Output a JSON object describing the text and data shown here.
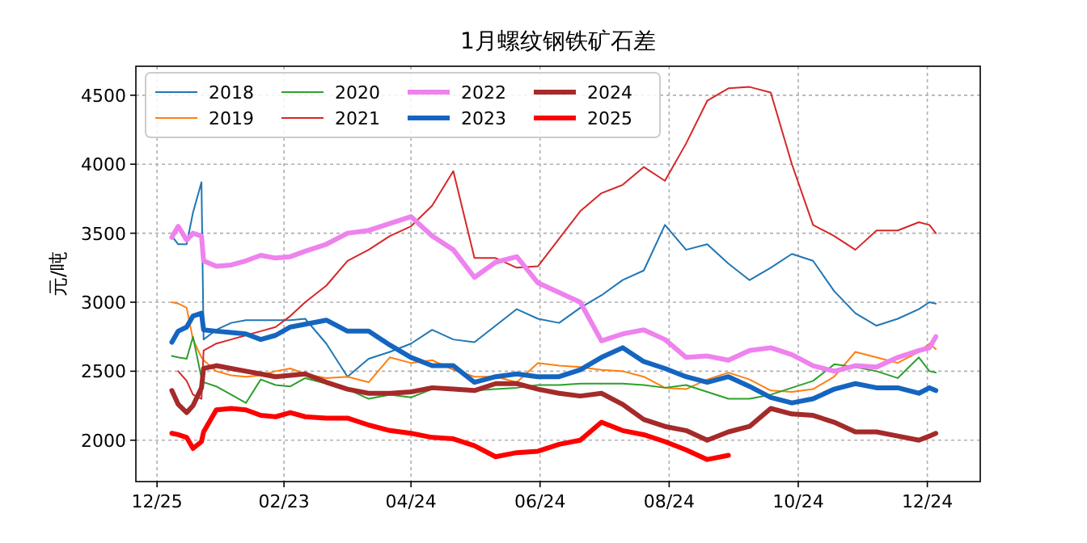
{
  "chart_data": {
    "type": "line",
    "title": "1月螺纹钢铁矿石差",
    "ylabel": "元/吨",
    "xlim": [
      "2000-12-15",
      "2002-01-18"
    ],
    "xticks": [
      {
        "value": "2000-12-25",
        "label": "12/25"
      },
      {
        "value": "2001-02-23",
        "label": "02/23"
      },
      {
        "value": "2001-04-24",
        "label": "04/24"
      },
      {
        "value": "2001-06-24",
        "label": "06/24"
      },
      {
        "value": "2001-08-24",
        "label": "08/24"
      },
      {
        "value": "2001-10-24",
        "label": "10/24"
      },
      {
        "value": "2001-12-24",
        "label": "12/24"
      }
    ],
    "ylim": [
      1700,
      4710
    ],
    "yticks": [
      2000,
      2500,
      3000,
      3500,
      4000,
      4500
    ],
    "grid": true,
    "legend": "top left",
    "line_style": "solid",
    "x": [
      "2001-01-01",
      "2001-01-04",
      "2001-01-08",
      "2001-01-11",
      "2001-01-15",
      "2001-01-16",
      "2001-01-22",
      "2001-01-29",
      "2001-02-05",
      "2001-02-12",
      "2001-02-19",
      "2001-02-26",
      "2001-03-05",
      "2001-03-15",
      "2001-03-25",
      "2001-04-04",
      "2001-04-14",
      "2001-04-24",
      "2001-05-04",
      "2001-05-14",
      "2001-05-24",
      "2001-06-03",
      "2001-06-13",
      "2001-06-23",
      "2001-07-03",
      "2001-07-13",
      "2001-07-23",
      "2001-08-02",
      "2001-08-12",
      "2001-08-22",
      "2001-09-01",
      "2001-09-11",
      "2001-09-21",
      "2001-10-01",
      "2001-10-11",
      "2001-10-21",
      "2001-10-31",
      "2001-11-10",
      "2001-11-20",
      "2001-11-30",
      "2001-12-10",
      "2001-12-20",
      "2001-12-25",
      "2001-12-28"
    ],
    "series": [
      {
        "name": "2018",
        "color": "#1f77b4",
        "values": [
          3480,
          3420,
          3420,
          3650,
          3870,
          2730,
          2800,
          2850,
          2870,
          2870,
          2870,
          2870,
          2880,
          2700,
          2460,
          2590,
          2640,
          2700,
          2800,
          2730,
          2710,
          2830,
          2950,
          2880,
          2850,
          2960,
          3050,
          3160,
          3230,
          3560,
          3380,
          3420,
          3280,
          3160,
          3250,
          3350,
          3300,
          3080,
          2920,
          2830,
          2880,
          2950,
          3000,
          2990
        ]
      },
      {
        "name": "2019",
        "color": "#ff7f0e",
        "values": [
          3000,
          2990,
          2960,
          2730,
          2600,
          2580,
          2500,
          2470,
          2460,
          2470,
          2500,
          2520,
          2480,
          2450,
          2460,
          2420,
          2600,
          2560,
          2580,
          2510,
          2460,
          2460,
          2420,
          2560,
          2540,
          2530,
          2510,
          2500,
          2460,
          2380,
          2370,
          2440,
          2490,
          2440,
          2360,
          2350,
          2370,
          2460,
          2640,
          2600,
          2560,
          2640,
          2700,
          2660
        ]
      },
      {
        "name": "2020",
        "color": "#2ca02c",
        "values": [
          2610,
          2600,
          2590,
          2750,
          2450,
          2420,
          2390,
          2330,
          2270,
          2440,
          2400,
          2390,
          2450,
          2410,
          2370,
          2300,
          2330,
          2310,
          2370,
          2380,
          2360,
          2370,
          2380,
          2400,
          2400,
          2410,
          2410,
          2410,
          2400,
          2380,
          2400,
          2350,
          2300,
          2300,
          2330,
          2380,
          2430,
          2550,
          2530,
          2500,
          2450,
          2600,
          2500,
          2490
        ]
      },
      {
        "name": "2021",
        "color": "#d62728",
        "values": [
          null,
          2500,
          2430,
          2330,
          2300,
          2650,
          2700,
          2730,
          2760,
          2790,
          2820,
          2900,
          3000,
          3120,
          3300,
          3380,
          3480,
          3550,
          3700,
          3950,
          3320,
          3320,
          3250,
          3260,
          3460,
          3660,
          3790,
          3850,
          3980,
          3880,
          4150,
          4460,
          4550,
          4560,
          4520,
          4000,
          3560,
          3480,
          3380,
          3520,
          3520,
          3580,
          3560,
          3500
        ]
      },
      {
        "name": "2022",
        "color": "#ee82ee",
        "values": [
          3470,
          3550,
          3450,
          3500,
          3480,
          3300,
          3260,
          3270,
          3300,
          3340,
          3320,
          3330,
          3370,
          3420,
          3500,
          3520,
          3570,
          3620,
          3480,
          3380,
          3180,
          3290,
          3330,
          3140,
          3070,
          3000,
          2720,
          2770,
          2800,
          2730,
          2600,
          2610,
          2580,
          2650,
          2670,
          2620,
          2540,
          2500,
          2540,
          2530,
          2600,
          2650,
          2670,
          2750
        ]
      },
      {
        "name": "2023",
        "color": "#1565c0",
        "values": [
          2710,
          2790,
          2820,
          2900,
          2920,
          2800,
          2790,
          2780,
          2770,
          2730,
          2760,
          2820,
          2840,
          2870,
          2790,
          2790,
          2690,
          2600,
          2540,
          2540,
          2420,
          2460,
          2480,
          2460,
          2460,
          2510,
          2600,
          2670,
          2570,
          2520,
          2460,
          2420,
          2460,
          2390,
          2310,
          2270,
          2300,
          2370,
          2410,
          2380,
          2380,
          2340,
          2380,
          2360
        ]
      },
      {
        "name": "2024",
        "color": "#a52a2a",
        "values": [
          2360,
          2260,
          2200,
          2250,
          2380,
          2520,
          2540,
          2520,
          2500,
          2480,
          2460,
          2470,
          2480,
          2420,
          2370,
          2340,
          2340,
          2350,
          2380,
          2370,
          2360,
          2410,
          2410,
          2370,
          2340,
          2320,
          2340,
          2260,
          2150,
          2100,
          2070,
          2000,
          2060,
          2100,
          2230,
          2190,
          2180,
          2130,
          2060,
          2060,
          2030,
          2000,
          2030,
          2050
        ]
      },
      {
        "name": "2025",
        "color": "#ff0000",
        "values": [
          2050,
          2040,
          2020,
          1940,
          1990,
          2060,
          2220,
          2230,
          2220,
          2180,
          2170,
          2200,
          2170,
          2160,
          2160,
          2110,
          2070,
          2050,
          2020,
          2010,
          1960,
          1880,
          1910,
          1920,
          1970,
          2000,
          2130,
          2070,
          2040,
          1990,
          1930,
          1860,
          1890,
          null,
          null,
          null,
          null,
          null,
          null,
          null,
          null,
          null,
          null,
          null
        ]
      }
    ]
  }
}
